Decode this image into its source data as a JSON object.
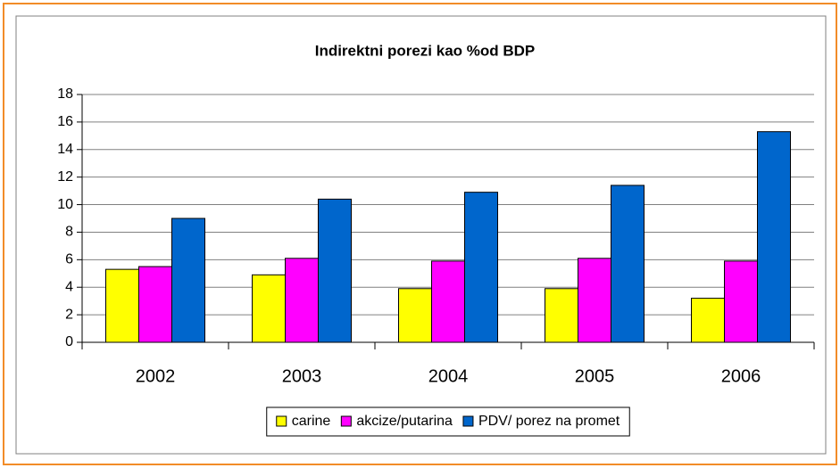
{
  "chart_data": {
    "type": "bar",
    "title": "Indirektni porezi kao %od BDP",
    "categories": [
      "2002",
      "2003",
      "2004",
      "2005",
      "2006"
    ],
    "series": [
      {
        "name": "carine",
        "color": "#ffff00",
        "values": [
          5.3,
          4.9,
          3.9,
          3.9,
          3.2
        ]
      },
      {
        "name": "akcize/putarina",
        "color": "#ff00ff",
        "values": [
          5.5,
          6.1,
          5.9,
          6.1,
          5.9
        ]
      },
      {
        "name": "PDV/ porez na promet",
        "color": "#0066cc",
        "values": [
          9.0,
          10.4,
          10.9,
          11.4,
          15.3
        ]
      }
    ],
    "ylim": [
      0,
      18
    ],
    "yticks": [
      0,
      2,
      4,
      6,
      8,
      10,
      12,
      14,
      16,
      18
    ],
    "grid": true,
    "legend": "bottom"
  }
}
